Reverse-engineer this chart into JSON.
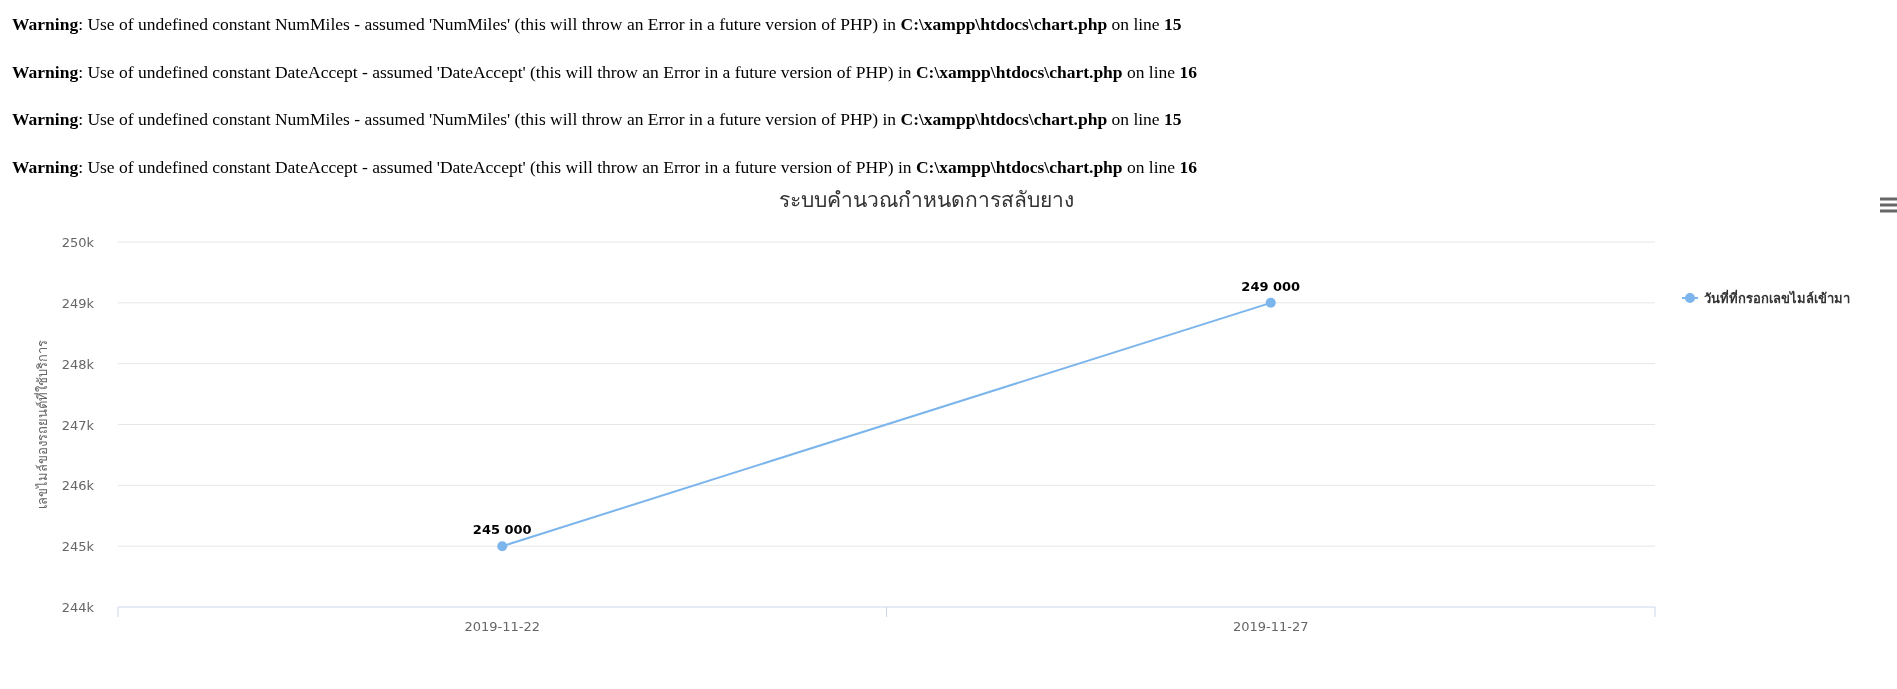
{
  "chart_data": {
    "type": "line",
    "title": "ระบบคำนวณกำหนดการสลับยาง",
    "ylabel": "เลขไมล์ของรถยนต์ที่ใช้บริการ",
    "annotations": [
      "**Warning**: Use of undefined constant NumMiles - assumed 'NumMiles' (this will throw an Error in a future version of PHP) in **C:\\xampp\\htdocs\\chart.php** on line **15**",
      "**Warning**: Use of undefined constant DateAccept - assumed 'DateAccept' (this will throw an Error in a future version of PHP) in **C:\\xampp\\htdocs\\chart.php** on line **16**",
      "**Warning**: Use of undefined constant NumMiles - assumed 'NumMiles' (this will throw an Error in a future version of PHP) in **C:\\xampp\\htdocs\\chart.php** on line **15**",
      "**Warning**: Use of undefined constant DateAccept - assumed 'DateAccept' (this will throw an Error in a future version of PHP) in **C:\\xampp\\htdocs\\chart.php** on line **16**"
    ],
    "categories": [
      "2019-11-22",
      "2019-11-27"
    ],
    "series": [
      {
        "name": "วันที่ที่กรอกเลขไมล์เข้ามา",
        "color": "#7cb5ec",
        "values": [
          245000,
          249000
        ],
        "value_labels": [
          "245 000",
          "249 000"
        ]
      }
    ],
    "ylim": [
      244000,
      250000
    ],
    "yticks": [
      {
        "value": 244000,
        "label": "244k"
      },
      {
        "value": 245000,
        "label": "245k"
      },
      {
        "value": 246000,
        "label": "246k"
      },
      {
        "value": 247000,
        "label": "247k"
      },
      {
        "value": 248000,
        "label": "248k"
      },
      {
        "value": 249000,
        "label": "249k"
      },
      {
        "value": 250000,
        "label": "250k"
      }
    ],
    "grid": "y",
    "legend": "right",
    "marker": "circle",
    "line_style": "solid"
  }
}
